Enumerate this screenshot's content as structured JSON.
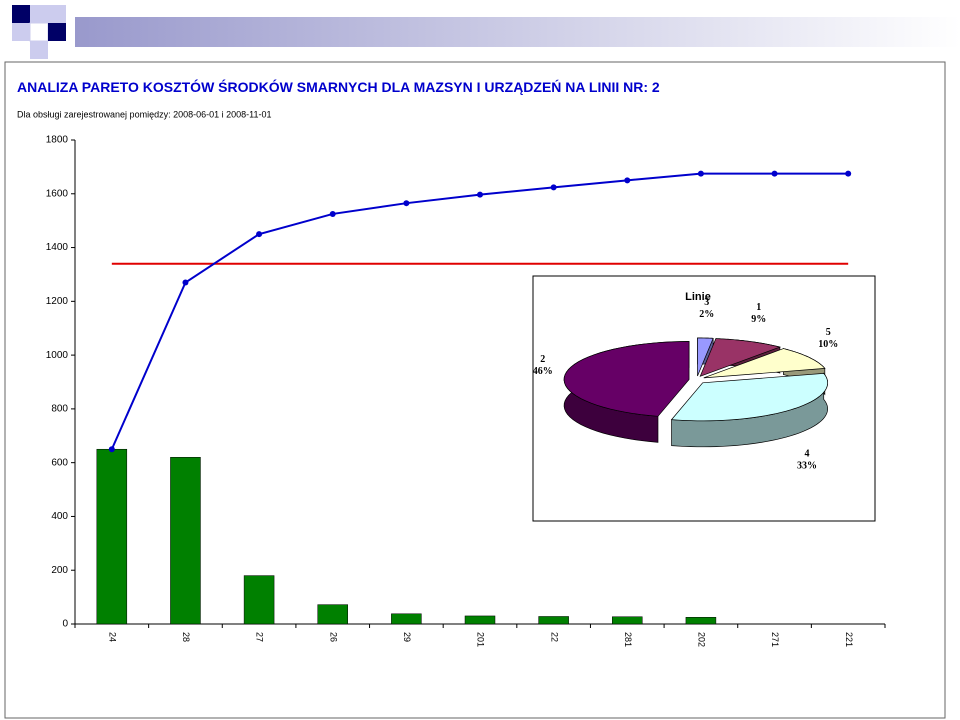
{
  "chart_data": [
    {
      "type": "pareto",
      "title": "ANALIZA PARETO KOSZTÓW ŚRODKÓW SMARNYCH DLA  MAZSYN I URZĄDZEŃ NA LINII NR:  2",
      "subtitle": "Dla obsługi zarejestrowanej pomiędzy: 2008-06-01 i 2008-11-01",
      "categories": [
        "24",
        "28",
        "27",
        "26",
        "29",
        "201",
        "22",
        "281",
        "202",
        "271",
        "221"
      ],
      "series": [
        {
          "type": "bar",
          "color": "#008000",
          "values": [
            650,
            620,
            180,
            72,
            38,
            30,
            28,
            27,
            25,
            0,
            0
          ]
        },
        {
          "type": "line",
          "color": "#0000cc",
          "values": [
            650,
            1270,
            1450,
            1525,
            1565,
            1597,
            1624,
            1650,
            1675,
            1675,
            1675
          ]
        }
      ],
      "reference_line": {
        "value": 1340,
        "color": "#e00000"
      },
      "ylim": [
        0,
        1800
      ],
      "yticks": [
        0,
        200,
        400,
        600,
        800,
        1000,
        1200,
        1400,
        1600,
        1800
      ]
    },
    {
      "type": "pie",
      "title": "Linie",
      "categories": [
        "3",
        "1",
        "5",
        "4",
        "2"
      ],
      "values": [
        2,
        9,
        10,
        33,
        46
      ],
      "value_labels": [
        "2%",
        "9%",
        "10%",
        "33%",
        "46%"
      ],
      "colors": [
        "#9999ff",
        "#993366",
        "#ffffcc",
        "#ccffff",
        "#660066"
      ]
    }
  ]
}
